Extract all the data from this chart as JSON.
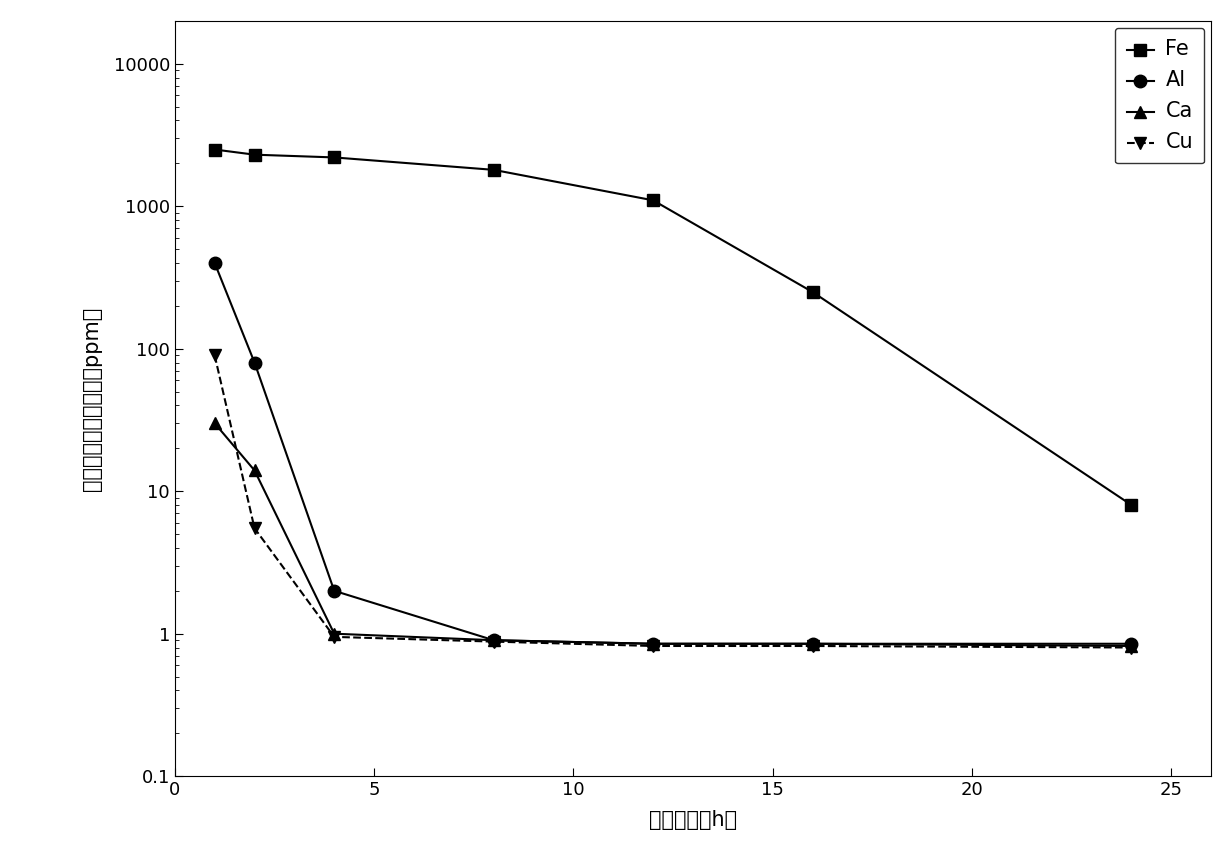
{
  "Fe": {
    "x": [
      1,
      2,
      4,
      8,
      12,
      16,
      24
    ],
    "y": [
      2500,
      2300,
      2200,
      1800,
      1100,
      250,
      8
    ],
    "marker": "s",
    "linestyle": "-",
    "label": "Fe"
  },
  "Al": {
    "x": [
      1,
      2,
      4,
      8,
      12,
      16,
      24
    ],
    "y": [
      400,
      80,
      2.0,
      0.9,
      0.85,
      0.85,
      0.85
    ],
    "marker": "o",
    "linestyle": "-",
    "label": "Al"
  },
  "Ca": {
    "x": [
      1,
      2,
      4,
      8,
      12,
      16,
      24
    ],
    "y": [
      30,
      14,
      1.0,
      0.9,
      0.85,
      0.85,
      0.82
    ],
    "marker": "^",
    "linestyle": "-",
    "label": "Ca"
  },
  "Cu": {
    "x": [
      1,
      2,
      4,
      8,
      12,
      16,
      24
    ],
    "y": [
      90,
      5.5,
      0.95,
      0.88,
      0.82,
      0.82,
      0.8
    ],
    "marker": "v",
    "linestyle": "--",
    "label": "Cu"
  },
  "xlabel": "反应时间（h）",
  "ylabel": "硒中杂质元素的含量（ppm）",
  "xlim": [
    0,
    26
  ],
  "ylim": [
    0.1,
    20000
  ],
  "xticks": [
    0,
    5,
    10,
    15,
    20,
    25
  ],
  "yticks": [
    0.1,
    1,
    10,
    100,
    1000,
    10000
  ],
  "ytick_labels": [
    "0.1",
    "1",
    "10",
    "100",
    "1000",
    "10000"
  ],
  "color": "#000000",
  "background_color": "#ffffff",
  "marker_size": 9,
  "linewidth": 1.5,
  "legend_loc": "upper right",
  "legend_fontsize": 15,
  "axis_fontsize": 15,
  "tick_fontsize": 13
}
